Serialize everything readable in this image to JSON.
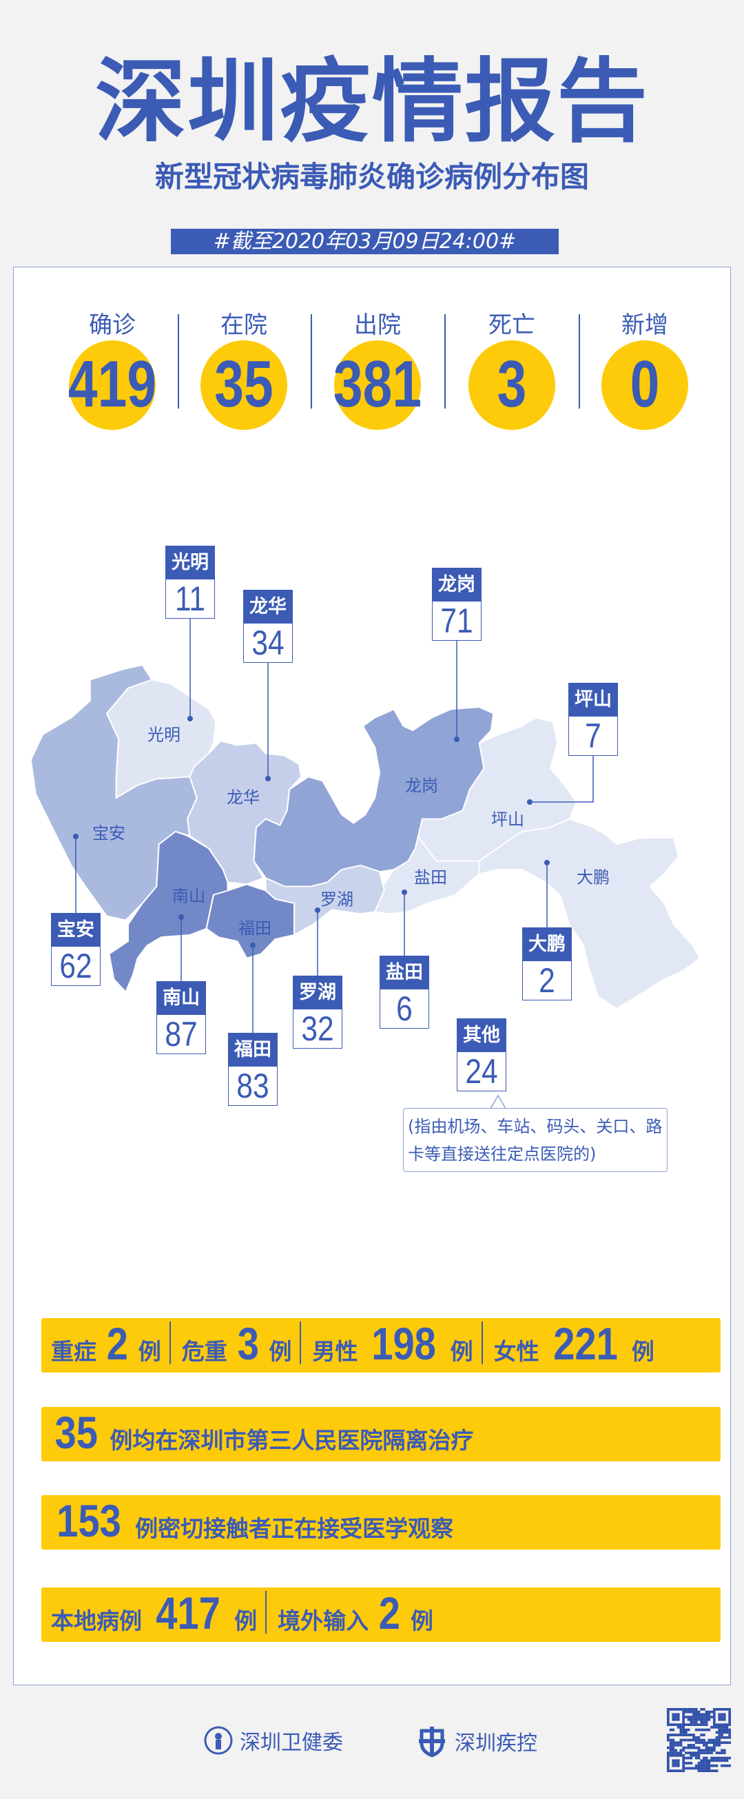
{
  "header": {
    "title": "深圳疫情报告",
    "subtitle": "新型冠状病毒肺炎确诊病例分布图",
    "as_of": "#截至2020年03月09日24:00#"
  },
  "stats": [
    {
      "label": "确诊",
      "value": "419"
    },
    {
      "label": "在院",
      "value": "35"
    },
    {
      "label": "出院",
      "value": "381"
    },
    {
      "label": "死亡",
      "value": "3"
    },
    {
      "label": "新增",
      "value": "0"
    }
  ],
  "map": {
    "districts": [
      {
        "name": "光明",
        "count": "11"
      },
      {
        "name": "龙华",
        "count": "34"
      },
      {
        "name": "龙岗",
        "count": "71"
      },
      {
        "name": "坪山",
        "count": "7"
      },
      {
        "name": "宝安",
        "count": "62"
      },
      {
        "name": "南山",
        "count": "87"
      },
      {
        "name": "福田",
        "count": "83"
      },
      {
        "name": "罗湖",
        "count": "32"
      },
      {
        "name": "盐田",
        "count": "6"
      },
      {
        "name": "大鹏",
        "count": "2"
      },
      {
        "name": "其他",
        "count": "24"
      }
    ],
    "other_note": "(指由机场、车站、码头、关口、路卡等直接送往定点医院的)",
    "colors": {
      "宝安": "#aab9de",
      "光明": "#dfe5f3",
      "龙华": "#c5cfea",
      "龙岗": "#90a4d5",
      "南山": "#7388c7",
      "福田": "#7388c7",
      "罗湖": "#c9d3ec",
      "east": "#e1e7f4"
    }
  },
  "summary": {
    "severe_label": "重症",
    "severe": "2",
    "critical_label": "危重",
    "critical": "3",
    "male_label": "男性",
    "male": "198",
    "female_label": "女性",
    "female": "221",
    "unit": "例",
    "hospital_count": "35",
    "hospital_text": "例均在深圳市第三人民医院隔离治疗",
    "contacts_count": "153",
    "contacts_text": "例密切接触者正在接受医学观察",
    "local_label": "本地病例",
    "local": "417",
    "imported_label": "境外输入",
    "imported": "2"
  },
  "footer": {
    "org1": "深圳卫健委",
    "org2": "深圳疾控"
  },
  "accent": "#3b5bb5",
  "highlight": "#fecb0b"
}
